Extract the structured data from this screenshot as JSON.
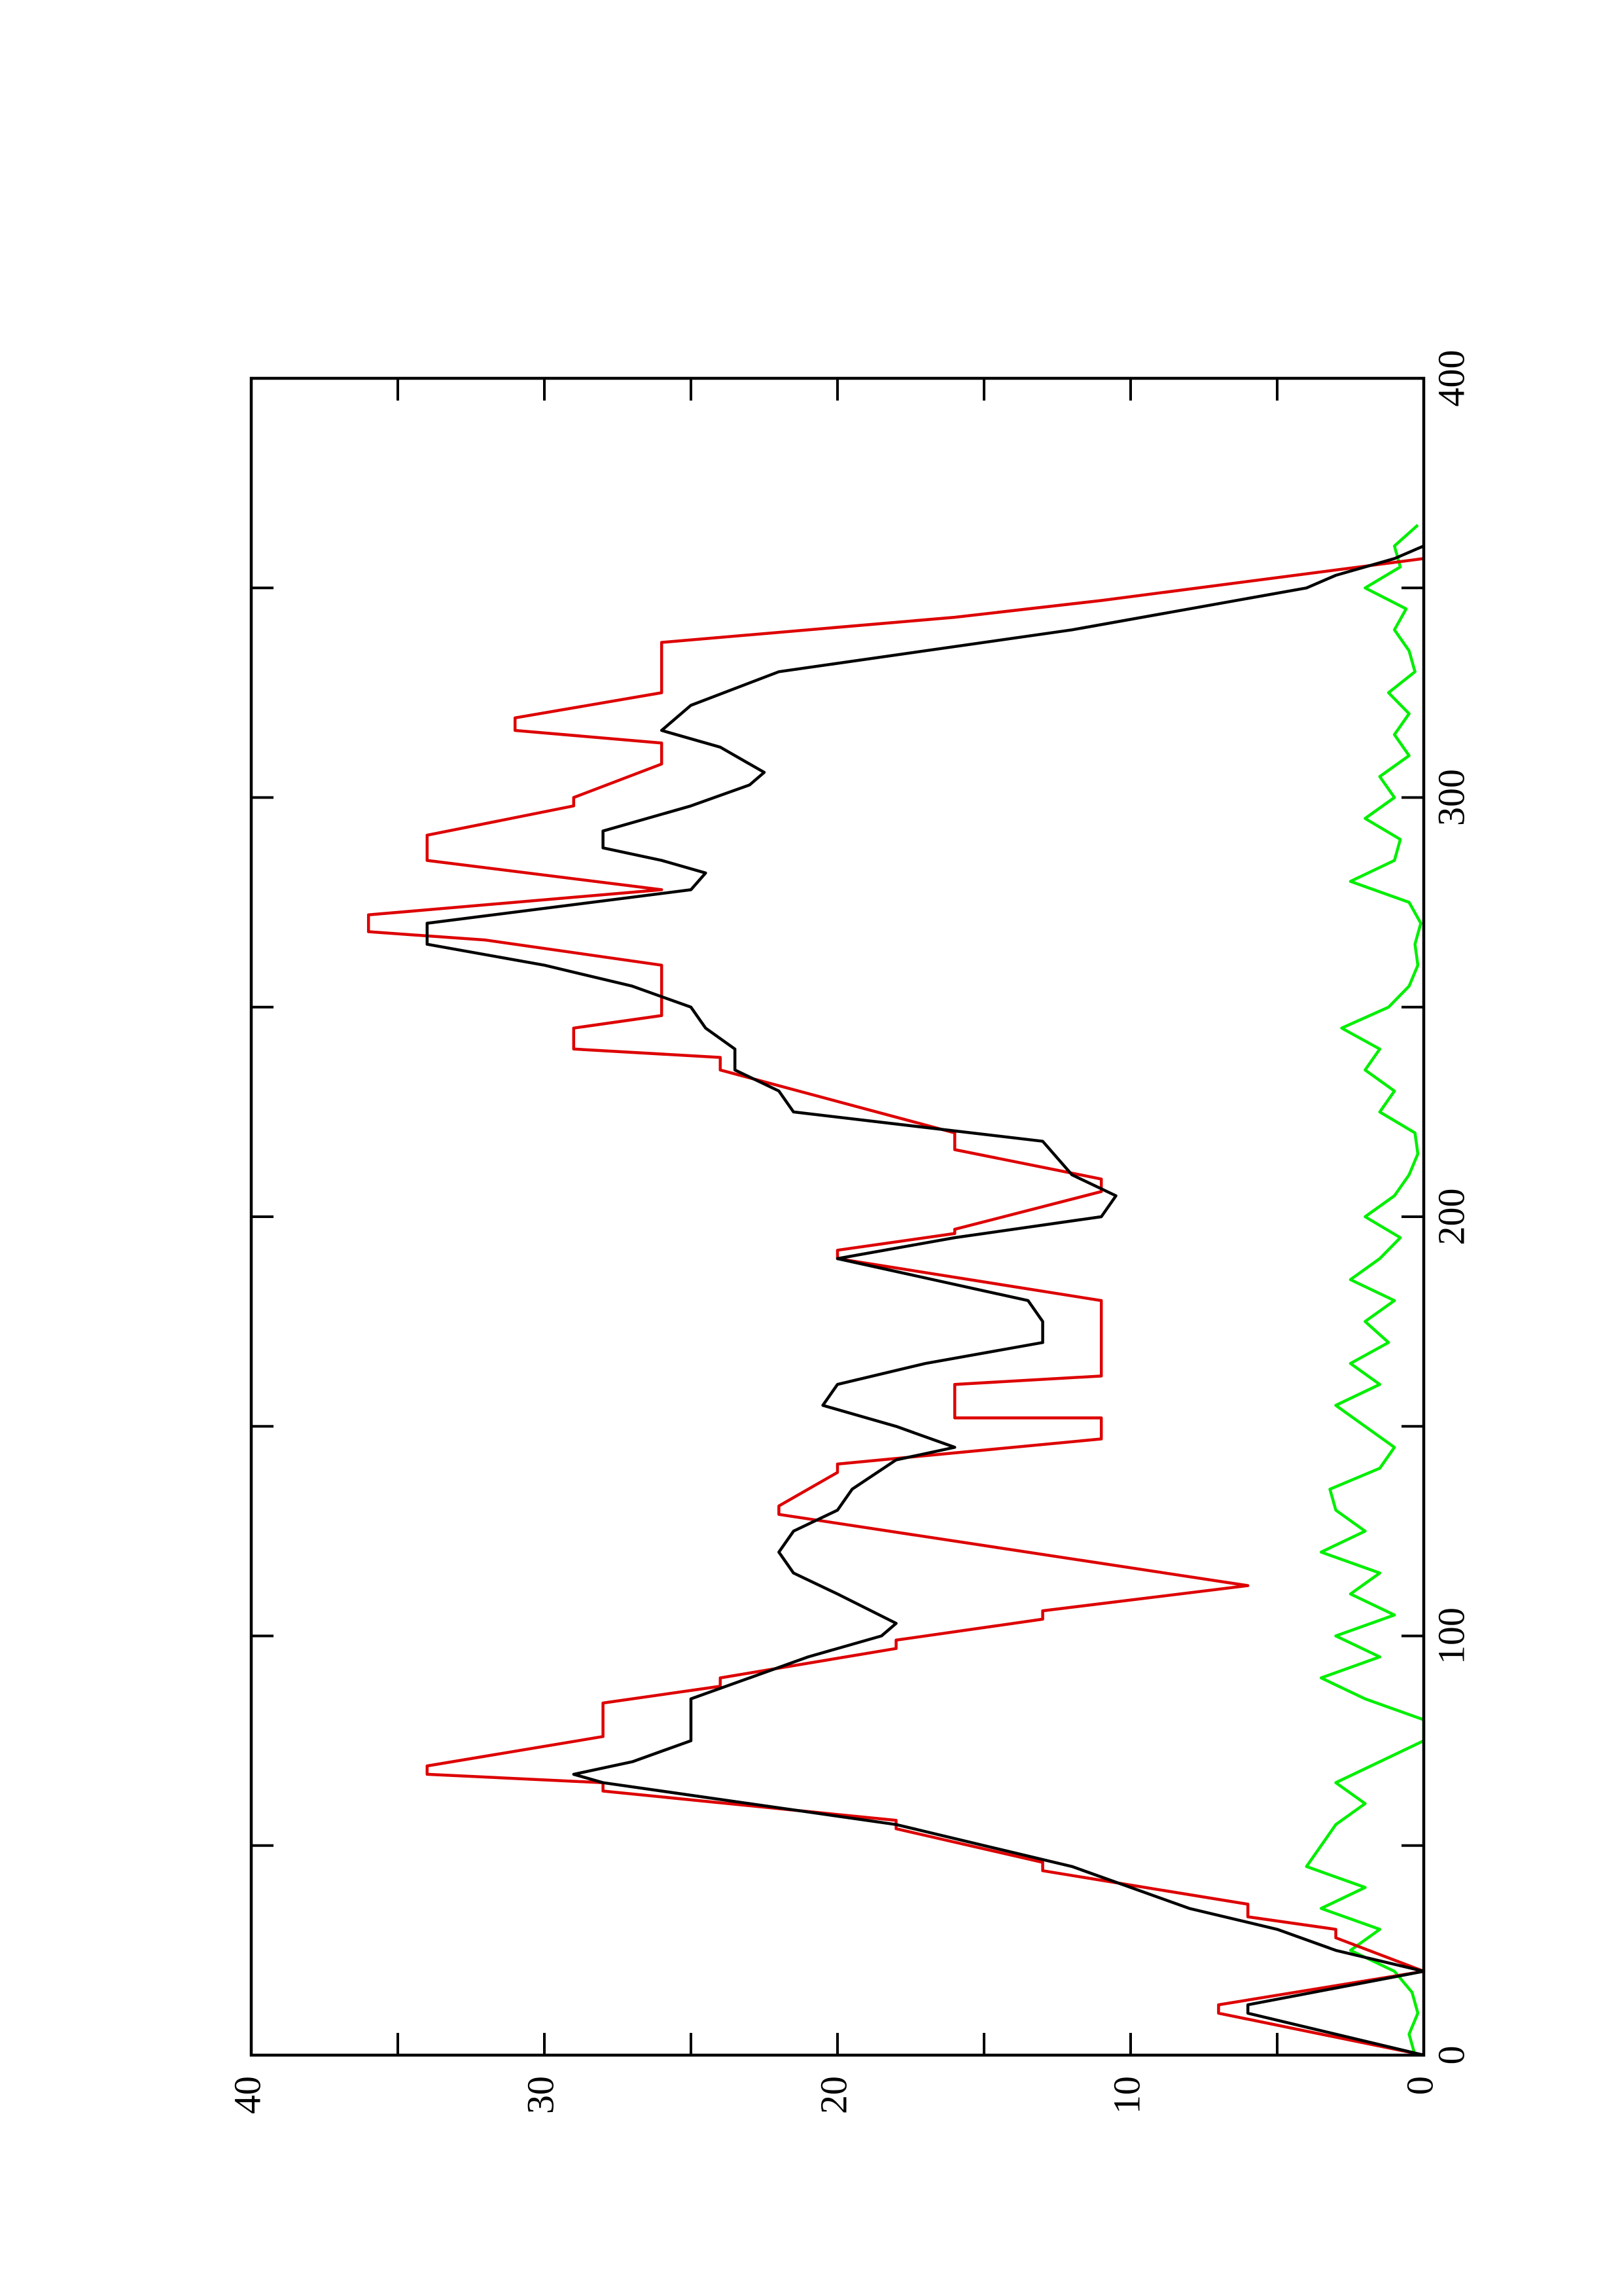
{
  "chart_data": {
    "type": "line",
    "xlim": [
      0,
      400
    ],
    "ylim": [
      0,
      40
    ],
    "xticks": [
      0,
      100,
      200,
      300,
      400
    ],
    "yticks": [
      0,
      10,
      20,
      30,
      40
    ],
    "x_minor_ticks": [
      50,
      150,
      250,
      350
    ],
    "y_minor_ticks": [
      5,
      15,
      25,
      35
    ],
    "rotated": true,
    "series": [
      {
        "color": "#00ee00",
        "x": [
          0,
          5,
          10,
          15,
          20,
          25,
          30,
          35,
          40,
          45,
          50,
          55,
          60,
          65,
          70,
          75,
          80,
          85,
          90,
          95,
          100,
          105,
          110,
          115,
          120,
          125,
          130,
          135,
          140,
          145,
          150,
          155,
          160,
          165,
          170,
          175,
          180,
          185,
          190,
          195,
          200,
          205,
          210,
          215,
          220,
          225,
          230,
          235,
          240,
          245,
          250,
          255,
          260,
          265,
          270,
          275,
          280,
          285,
          290,
          295,
          300,
          305,
          310,
          315,
          320,
          325,
          330,
          335,
          340,
          345,
          350,
          355,
          360,
          365
        ],
        "values": [
          0.3,
          0.5,
          0.2,
          0.4,
          1,
          2.5,
          1.5,
          3.5,
          2,
          4,
          3.5,
          3,
          2,
          3,
          1.5,
          0,
          0,
          2,
          3.5,
          1.5,
          3,
          1,
          2.5,
          1.5,
          3.5,
          2,
          3,
          3.2,
          1.5,
          1,
          2,
          3,
          1.5,
          2.5,
          1.2,
          2,
          1,
          2.5,
          1.5,
          0.8,
          2,
          1,
          0.5,
          0.2,
          0.3,
          1.5,
          1,
          2,
          1.5,
          2.8,
          1.2,
          0.5,
          0.2,
          0.3,
          0.1,
          0.5,
          2.5,
          1,
          0.8,
          2,
          1,
          1.5,
          0.5,
          1,
          0.5,
          1.2,
          0.3,
          0.5,
          1,
          0.6,
          2,
          0.8,
          1,
          0.2
        ]
      },
      {
        "color": "#dd0000",
        "x": [
          0,
          10,
          12,
          20,
          28,
          30,
          33,
          36,
          44,
          46,
          54,
          56,
          63,
          65,
          67,
          69,
          76,
          84,
          88,
          90,
          97,
          99,
          104,
          106,
          112,
          129,
          131,
          139,
          141,
          147,
          152,
          152,
          160,
          162,
          180,
          190,
          192,
          196,
          197,
          206,
          209,
          216,
          220,
          235,
          238,
          240,
          245,
          248,
          260,
          266,
          268,
          272,
          278,
          285,
          291,
          298,
          300,
          308,
          313,
          316,
          319,
          325,
          337,
          343,
          347,
          357
        ],
        "values": [
          0,
          7,
          7,
          0,
          3,
          3,
          6,
          6,
          13,
          13,
          18,
          18,
          28,
          28,
          34,
          34,
          28,
          28,
          24,
          24,
          18,
          18,
          13,
          13,
          6,
          22,
          22,
          20,
          20,
          11,
          11,
          16,
          16,
          11,
          11,
          20,
          20,
          16,
          16,
          11,
          11,
          16,
          16,
          24,
          24,
          29,
          29,
          26,
          26,
          32,
          36,
          36,
          26,
          34,
          34,
          29,
          29,
          26,
          26,
          31,
          31,
          26,
          26,
          16,
          11,
          0
        ]
      },
      {
        "color": "#000000",
        "x": [
          0,
          10,
          12,
          20,
          25,
          30,
          35,
          40,
          45,
          50,
          55,
          60,
          63,
          65,
          67,
          70,
          75,
          85,
          90,
          95,
          100,
          103,
          110,
          115,
          120,
          125,
          130,
          135,
          142,
          145,
          150,
          155,
          160,
          165,
          170,
          175,
          180,
          190,
          195,
          200,
          205,
          210,
          218,
          225,
          230,
          235,
          240,
          245,
          250,
          255,
          260,
          265,
          270,
          278,
          282,
          285,
          288,
          292,
          298,
          303,
          306,
          312,
          316,
          322,
          330,
          340,
          345,
          350,
          353,
          357,
          360
        ],
        "values": [
          0,
          6,
          6,
          0,
          3,
          5,
          8,
          10,
          12,
          15,
          18,
          23,
          26,
          28,
          29,
          27,
          25,
          25,
          23,
          21,
          18.5,
          18,
          20,
          21.5,
          22,
          21.5,
          20,
          19.5,
          18,
          16,
          18,
          20.5,
          20,
          17,
          13,
          13,
          13.5,
          20,
          16,
          11,
          10.5,
          12,
          13,
          21.5,
          22,
          23.5,
          23.5,
          24.5,
          25,
          27,
          30,
          34,
          34,
          25,
          24.5,
          26,
          28,
          28,
          25,
          23,
          22.5,
          24,
          26,
          25,
          22,
          12,
          8,
          4,
          3,
          1,
          0
        ]
      }
    ]
  }
}
